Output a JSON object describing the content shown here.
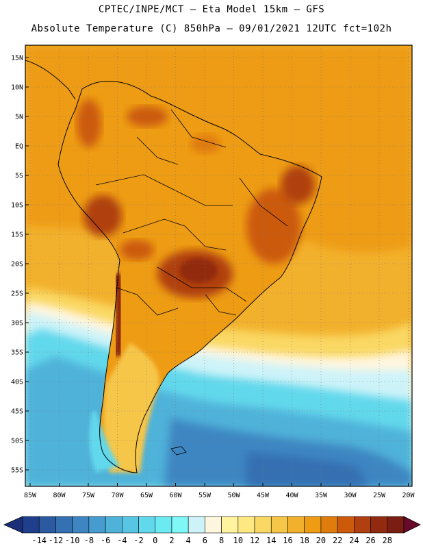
{
  "header": {
    "title_line1": "CPTEC/INPE/MCT –  Eta Model 15km – GFS",
    "title_line2": "Absolute Temperature (C) 850hPa – 09/01/2021 12UTC fct=102h"
  },
  "axes": {
    "lat_labels": [
      "15N",
      "10N",
      "5N",
      "EQ",
      "5S",
      "10S",
      "15S",
      "20S",
      "25S",
      "30S",
      "35S",
      "40S",
      "45S",
      "50S",
      "55S"
    ],
    "lon_labels": [
      "85W",
      "80W",
      "75W",
      "70W",
      "65W",
      "60W",
      "55W",
      "50W",
      "45W",
      "40W",
      "35W",
      "30W",
      "25W",
      "20W"
    ]
  },
  "colorbar": {
    "ticks": [
      "-14",
      "-12",
      "-10",
      "-8",
      "-6",
      "-4",
      "-2",
      "0",
      "2",
      "4",
      "6",
      "8",
      "10",
      "12",
      "14",
      "16",
      "18",
      "20",
      "22",
      "24",
      "26",
      "28"
    ],
    "colors": [
      "#1f3f8c",
      "#2b5aa0",
      "#3570b2",
      "#3e86c2",
      "#479ccf",
      "#4fb2d9",
      "#58c6e3",
      "#62d8ec",
      "#6ceaf2",
      "#7ff7f7",
      "#cdf3f9",
      "#fff6e0",
      "#fff3a0",
      "#fde882",
      "#fad864",
      "#f6c648",
      "#f2b12c",
      "#ee9c14",
      "#e07c0c",
      "#cc5a0a",
      "#b04010",
      "#922a10",
      "#7a1e14"
    ],
    "under_color": "#1b2f78",
    "over_color": "#6a0a2a"
  }
}
